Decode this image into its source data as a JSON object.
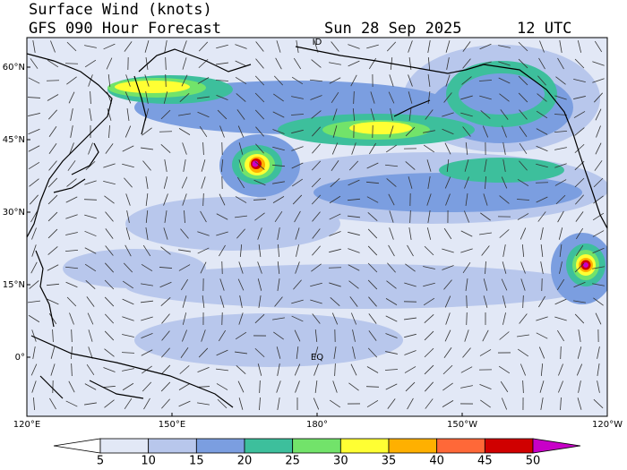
{
  "header": {
    "title": "Surface Wind (knots)",
    "subtitle": "GFS 090 Hour Forecast",
    "date": "Sun 28 Sep 2025",
    "time": "12 UTC"
  },
  "map": {
    "lat_labels": [
      "60°N",
      "45°N",
      "30°N",
      "15°N",
      "0°"
    ],
    "lon_labels": [
      "120°E",
      "150°E",
      "180°",
      "150°W",
      "120°W"
    ],
    "markers": [
      "ID",
      "EQ"
    ]
  },
  "colorbar": {
    "ticks": [
      5,
      10,
      15,
      20,
      25,
      30,
      35,
      40,
      45,
      50
    ],
    "colors": [
      "#ffffff",
      "#e2e8f6",
      "#b8c7ec",
      "#7b9ee0",
      "#3dbf9c",
      "#72e36a",
      "#ffff33",
      "#ffb000",
      "#ff6838",
      "#d00000",
      "#c800c8"
    ]
  }
}
